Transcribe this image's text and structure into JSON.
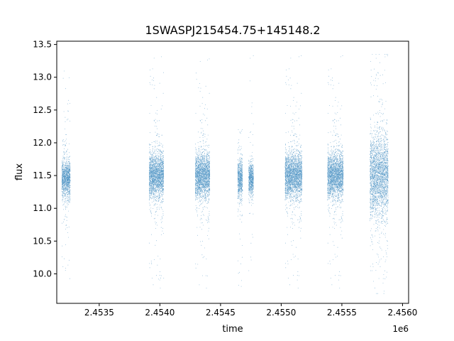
{
  "chart_data": {
    "type": "scatter",
    "title": "1SWASPJ215454.75+145148.2",
    "xlabel": "time",
    "ylabel": "flux",
    "x_offset_label": "1e6",
    "xlim": [
      2.45315,
      2.45605
    ],
    "ylim": [
      9.55,
      13.55
    ],
    "x_ticks": [
      2.4535,
      2.454,
      2.4545,
      2.455,
      2.4555,
      2.456
    ],
    "x_tick_labels": [
      "2.4535",
      "2.4540",
      "2.4545",
      "2.4550",
      "2.4555",
      "2.4560"
    ],
    "y_ticks": [
      10.0,
      10.5,
      11.0,
      11.5,
      12.0,
      12.5,
      13.0,
      13.5
    ],
    "y_tick_labels": [
      "10.0",
      "10.5",
      "11.0",
      "11.5",
      "12.0",
      "12.5",
      "13.0",
      "13.5"
    ],
    "grid": false,
    "marker_color": "#1f77b4",
    "series": [
      {
        "observing_seasons": [
          {
            "x_start": 2.45319,
            "x_end": 2.45326,
            "y_center": 11.45,
            "y_spread": 0.25,
            "y_min": 9.9,
            "y_max": 13.2
          },
          {
            "x_start": 2.45391,
            "x_end": 2.45403,
            "y_center": 11.5,
            "y_spread": 0.3,
            "y_min": 9.75,
            "y_max": 13.35
          },
          {
            "x_start": 2.45429,
            "x_end": 2.45441,
            "y_center": 11.5,
            "y_spread": 0.3,
            "y_min": 9.75,
            "y_max": 13.3
          },
          {
            "x_start": 2.45464,
            "x_end": 2.45468,
            "y_center": 11.45,
            "y_spread": 0.25,
            "y_min": 9.7,
            "y_max": 12.2
          },
          {
            "x_start": 2.45473,
            "x_end": 2.45477,
            "y_center": 11.45,
            "y_spread": 0.2,
            "y_min": 9.7,
            "y_max": 13.35
          },
          {
            "x_start": 2.45503,
            "x_end": 2.45517,
            "y_center": 11.5,
            "y_spread": 0.3,
            "y_min": 9.75,
            "y_max": 13.35
          },
          {
            "x_start": 2.45538,
            "x_end": 2.45551,
            "y_center": 11.5,
            "y_spread": 0.3,
            "y_min": 9.75,
            "y_max": 13.35
          },
          {
            "x_start": 2.45573,
            "x_end": 2.45588,
            "y_center": 11.5,
            "y_spread": 0.55,
            "y_min": 9.7,
            "y_max": 13.35
          }
        ]
      }
    ]
  }
}
